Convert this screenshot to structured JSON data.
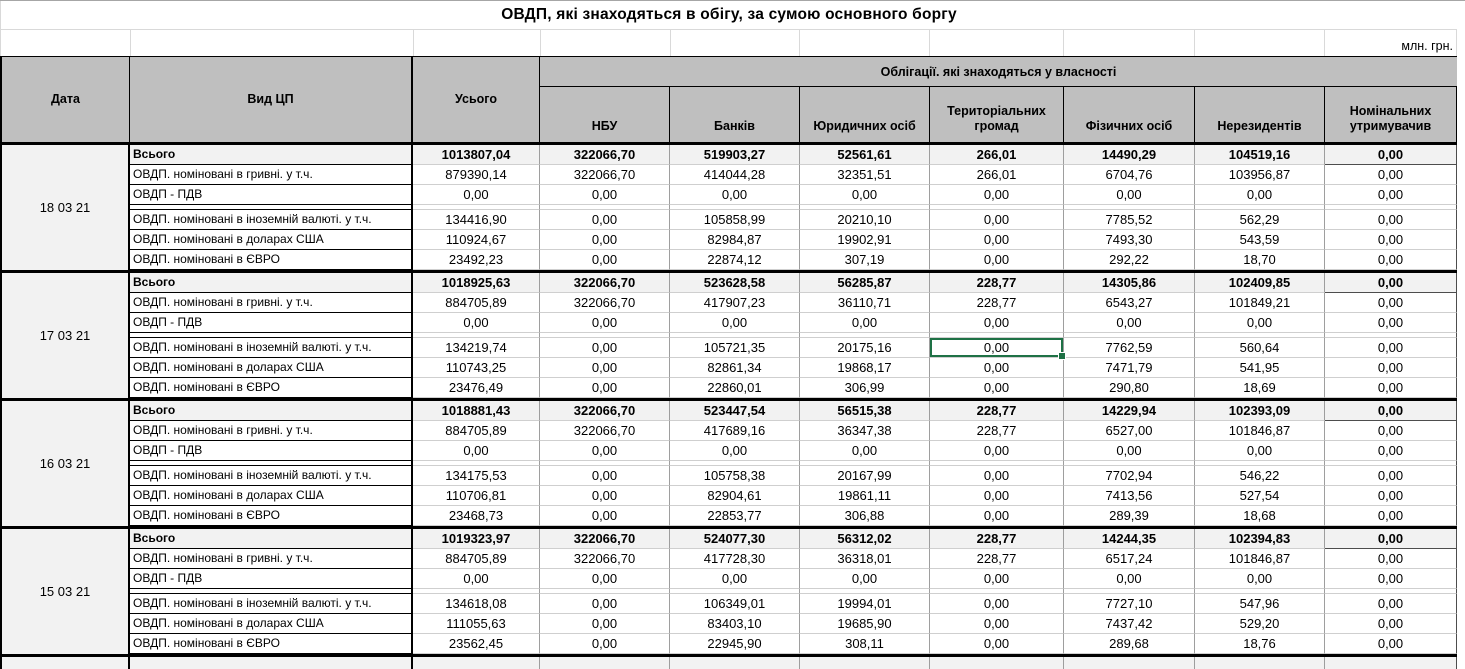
{
  "meta": {
    "title": "ОВДП, які знаходяться в обігу, за сумою основного боргу",
    "units": "млн. грн."
  },
  "colors": {
    "header_bg": "#bfbfbf",
    "total_row_bg": "#f2f2f2",
    "selection_green": "#1e7145",
    "grid_light": "#cfcfcf",
    "grid_dark": "#000000"
  },
  "table": {
    "col_headers": {
      "date": "Дата",
      "type": "Вид ЦП",
      "total": "Усього",
      "group": "Облігації. які знаходяться у власності",
      "owners": [
        "НБУ",
        "Банків",
        "Юридичних осіб",
        "Територіальних громад",
        "Фізичних осіб",
        "Нерезидентів",
        "Номінальних утримувачив"
      ]
    },
    "row_labels": [
      "Всього",
      "ОВДП. номіновані в гривні. у т.ч.",
      "ОВДП - ПДВ",
      "ОВДП. номіновані в іноземній валюті. у т.ч.",
      "ОВДП. номіновані в доларах США",
      "ОВДП. номіновані в ЄВРО"
    ],
    "blocks": [
      {
        "date": "18 03 21",
        "rows": [
          [
            "1013807,04",
            "322066,70",
            "519903,27",
            "52561,61",
            "266,01",
            "14490,29",
            "104519,16",
            "0,00"
          ],
          [
            "879390,14",
            "322066,70",
            "414044,28",
            "32351,51",
            "266,01",
            "6704,76",
            "103956,87",
            "0,00"
          ],
          [
            "0,00",
            "0,00",
            "0,00",
            "0,00",
            "0,00",
            "0,00",
            "0,00",
            "0,00"
          ],
          [
            "134416,90",
            "0,00",
            "105858,99",
            "20210,10",
            "0,00",
            "7785,52",
            "562,29",
            "0,00"
          ],
          [
            "110924,67",
            "0,00",
            "82984,87",
            "19902,91",
            "0,00",
            "7493,30",
            "543,59",
            "0,00"
          ],
          [
            "23492,23",
            "0,00",
            "22874,12",
            "307,19",
            "0,00",
            "292,22",
            "18,70",
            "0,00"
          ]
        ]
      },
      {
        "date": "17 03 21",
        "rows": [
          [
            "1018925,63",
            "322066,70",
            "523628,58",
            "56285,87",
            "228,77",
            "14305,86",
            "102409,85",
            "0,00"
          ],
          [
            "884705,89",
            "322066,70",
            "417907,23",
            "36110,71",
            "228,77",
            "6543,27",
            "101849,21",
            "0,00"
          ],
          [
            "0,00",
            "0,00",
            "0,00",
            "0,00",
            "0,00",
            "0,00",
            "0,00",
            "0,00"
          ],
          [
            "134219,74",
            "0,00",
            "105721,35",
            "20175,16",
            "0,00",
            "7762,59",
            "560,64",
            "0,00"
          ],
          [
            "110743,25",
            "0,00",
            "82861,34",
            "19868,17",
            "0,00",
            "7471,79",
            "541,95",
            "0,00"
          ],
          [
            "23476,49",
            "0,00",
            "22860,01",
            "306,99",
            "0,00",
            "290,80",
            "18,69",
            "0,00"
          ]
        ]
      },
      {
        "date": "16 03 21",
        "rows": [
          [
            "1018881,43",
            "322066,70",
            "523447,54",
            "56515,38",
            "228,77",
            "14229,94",
            "102393,09",
            "0,00"
          ],
          [
            "884705,89",
            "322066,70",
            "417689,16",
            "36347,38",
            "228,77",
            "6527,00",
            "101846,87",
            "0,00"
          ],
          [
            "0,00",
            "0,00",
            "0,00",
            "0,00",
            "0,00",
            "0,00",
            "0,00",
            "0,00"
          ],
          [
            "134175,53",
            "0,00",
            "105758,38",
            "20167,99",
            "0,00",
            "7702,94",
            "546,22",
            "0,00"
          ],
          [
            "110706,81",
            "0,00",
            "82904,61",
            "19861,11",
            "0,00",
            "7413,56",
            "527,54",
            "0,00"
          ],
          [
            "23468,73",
            "0,00",
            "22853,77",
            "306,88",
            "0,00",
            "289,39",
            "18,68",
            "0,00"
          ]
        ]
      },
      {
        "date": "15 03 21",
        "rows": [
          [
            "1019323,97",
            "322066,70",
            "524077,30",
            "56312,02",
            "228,77",
            "14244,35",
            "102394,83",
            "0,00"
          ],
          [
            "884705,89",
            "322066,70",
            "417728,30",
            "36318,01",
            "228,77",
            "6517,24",
            "101846,87",
            "0,00"
          ],
          [
            "0,00",
            "0,00",
            "0,00",
            "0,00",
            "0,00",
            "0,00",
            "0,00",
            "0,00"
          ],
          [
            "134618,08",
            "0,00",
            "106349,01",
            "19994,01",
            "0,00",
            "7727,10",
            "547,96",
            "0,00"
          ],
          [
            "111055,63",
            "0,00",
            "83403,10",
            "19685,90",
            "0,00",
            "7437,42",
            "529,20",
            "0,00"
          ],
          [
            "23562,45",
            "0,00",
            "22945,90",
            "308,11",
            "0,00",
            "289,68",
            "18,76",
            "0,00"
          ]
        ]
      }
    ],
    "selection": {
      "block_index": 1,
      "row_index": 3,
      "col_index": 4
    }
  }
}
